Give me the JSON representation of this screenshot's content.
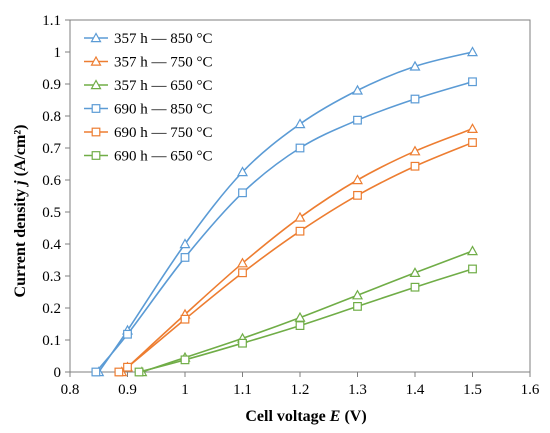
{
  "chart_data": {
    "type": "line",
    "xlabel": {
      "prefix": "Cell voltage ",
      "var": "E",
      "suffix": " (V)"
    },
    "ylabel": {
      "prefix": "Current density ",
      "var": "j",
      "suffix": " (A/cm²)"
    },
    "xlim": [
      0.8,
      1.6
    ],
    "ylim": [
      0,
      1.1
    ],
    "xticks": [
      "0.8",
      "0.9",
      "1",
      "1.1",
      "1.2",
      "1.3",
      "1.4",
      "1.5",
      "1.6"
    ],
    "yticks": [
      "0",
      "0.1",
      "0.2",
      "0.3",
      "0.4",
      "0.5",
      "0.6",
      "0.7",
      "0.8",
      "0.9",
      "1",
      "1.1"
    ],
    "grid": false,
    "legend_position": "top-left",
    "series": [
      {
        "name": "357 h — 850 °C",
        "color": "#5b9bd5",
        "marker": "triangle",
        "x": [
          0.85,
          0.9,
          1.0,
          1.1,
          1.2,
          1.3,
          1.4,
          1.5
        ],
        "y": [
          0.0,
          0.13,
          0.4,
          0.625,
          0.775,
          0.88,
          0.955,
          1.0
        ]
      },
      {
        "name": "357 h — 750 °C",
        "color": "#ed7d31",
        "marker": "triangle",
        "x": [
          0.89,
          0.9,
          1.0,
          1.1,
          1.2,
          1.3,
          1.4,
          1.5
        ],
        "y": [
          0.0,
          0.015,
          0.18,
          0.34,
          0.483,
          0.6,
          0.69,
          0.76
        ]
      },
      {
        "name": "357 h — 650 °C",
        "color": "#70ad47",
        "marker": "triangle",
        "x": [
          0.925,
          1.0,
          1.1,
          1.2,
          1.3,
          1.4,
          1.5
        ],
        "y": [
          0.0,
          0.045,
          0.105,
          0.17,
          0.24,
          0.31,
          0.378
        ]
      },
      {
        "name": "690 h — 850 °C",
        "color": "#5b9bd5",
        "marker": "square",
        "x": [
          0.845,
          0.9,
          1.0,
          1.1,
          1.2,
          1.3,
          1.4,
          1.5
        ],
        "y": [
          0.0,
          0.118,
          0.358,
          0.56,
          0.7,
          0.787,
          0.853,
          0.907
        ]
      },
      {
        "name": "690 h — 750 °C",
        "color": "#ed7d31",
        "marker": "square",
        "x": [
          0.885,
          0.9,
          1.0,
          1.1,
          1.2,
          1.3,
          1.4,
          1.5
        ],
        "y": [
          0.0,
          0.015,
          0.165,
          0.31,
          0.44,
          0.552,
          0.643,
          0.717
        ]
      },
      {
        "name": "690 h — 650 °C",
        "color": "#70ad47",
        "marker": "square",
        "x": [
          0.92,
          1.0,
          1.1,
          1.2,
          1.3,
          1.4,
          1.5
        ],
        "y": [
          0.0,
          0.038,
          0.09,
          0.145,
          0.205,
          0.265,
          0.322
        ]
      }
    ]
  }
}
